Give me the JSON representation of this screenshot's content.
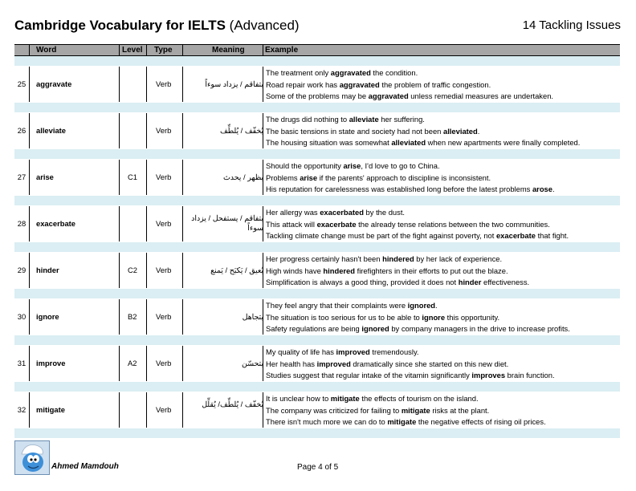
{
  "header": {
    "title_bold": "Cambridge Vocabulary for IELTS",
    "title_normal": "(Advanced)",
    "chapter": "14 Tackling Issues"
  },
  "table": {
    "columns": {
      "word": "Word",
      "level": "Level",
      "type": "Type",
      "meaning": "Meaning",
      "example": "Example"
    },
    "rows": [
      {
        "num": "25",
        "word": "aggravate",
        "level": "",
        "type": "Verb",
        "meaning": "يتفاقم / يزداد سوءاً",
        "examples": [
          [
            "The treatment only ",
            "aggravated",
            " the condition."
          ],
          [
            "Road repair work has ",
            "aggravated",
            " the problem of traffic congestion."
          ],
          [
            "Some of the problems may be ",
            "aggravated",
            " unless remedial measures are undertaken."
          ]
        ]
      },
      {
        "num": "26",
        "word": "alleviate",
        "level": "",
        "type": "Verb",
        "meaning": "يُخفّف / يُلطِّف",
        "examples": [
          [
            "The drugs did nothing to ",
            "alleviate",
            " her suffering."
          ],
          [
            "The basic tensions in state and society had not been ",
            "alleviated",
            "."
          ],
          [
            "The housing situation was somewhat ",
            "alleviated",
            " when new apartments were finally completed."
          ]
        ]
      },
      {
        "num": "27",
        "word": "arise",
        "level": "C1",
        "type": "Verb",
        "meaning": "يظهر / يحدث",
        "examples": [
          [
            "Should the opportunity ",
            "arise",
            ", I'd love to go to China."
          ],
          [
            "Problems ",
            "arise",
            " if the parents' approach to discipline is inconsistent."
          ],
          [
            "His reputation for carelessness was established long before the latest problems ",
            "arose",
            "."
          ]
        ]
      },
      {
        "num": "28",
        "word": "exacerbate",
        "level": "",
        "type": "Verb",
        "meaning": "يتفاقم / يستفحل / يزداد سوءاً",
        "examples": [
          [
            "Her allergy was ",
            "exacerbated",
            " by the dust."
          ],
          [
            "This attack will ",
            "exacerbate",
            " the already tense relations between the two communities."
          ],
          [
            "Tackling climate change must be part of the fight against poverty, not ",
            "exacerbate",
            " that fight."
          ]
        ]
      },
      {
        "num": "29",
        "word": "hinder",
        "level": "C2",
        "type": "Verb",
        "meaning": "يُعيق / يَكبَح / يَمنع",
        "examples": [
          [
            "Her progress certainly hasn't been ",
            "hindered",
            " by her lack of experience."
          ],
          [
            "High winds have ",
            "hindered",
            " firefighters in their efforts to put out the blaze."
          ],
          [
            "Simplification is always a good thing, provided it does not ",
            "hinder",
            " effectiveness."
          ]
        ]
      },
      {
        "num": "30",
        "word": "ignore",
        "level": "B2",
        "type": "Verb",
        "meaning": "يتجاهل",
        "examples": [
          [
            "They feel angry that their complaints were ",
            "ignored",
            "."
          ],
          [
            "The situation is too serious for us to be able to ",
            "ignore",
            " this opportunity."
          ],
          [
            "Safety regulations are being ",
            "ignored",
            " by company managers in the drive to increase profits."
          ]
        ]
      },
      {
        "num": "31",
        "word": "improve",
        "level": "A2",
        "type": "Verb",
        "meaning": "يتحسّن",
        "examples": [
          [
            "My quality of life has ",
            "improved",
            " tremendously."
          ],
          [
            "Her health has ",
            "improved",
            " dramatically since she started on this new diet."
          ],
          [
            "Studies suggest that regular intake of the vitamin significantly ",
            "improves",
            " brain function."
          ]
        ]
      },
      {
        "num": "32",
        "word": "mitigate",
        "level": "",
        "type": "Verb",
        "meaning": "يُخفّف / يُلطِّف/ يُقلِّل",
        "examples": [
          [
            "It is unclear how to ",
            "mitigate",
            " the effects of tourism on the island."
          ],
          [
            "The company was criticized for failing to ",
            "mitigate",
            " risks at the plant."
          ],
          [
            "There isn't much more we can do to ",
            "mitigate",
            " the negative effects of rising oil prices."
          ]
        ]
      }
    ]
  },
  "footer": {
    "author": "Ahmed Mamdouh",
    "page": "Page 4 of 5",
    "avatar_icon": "smurf-avatar-icon"
  }
}
